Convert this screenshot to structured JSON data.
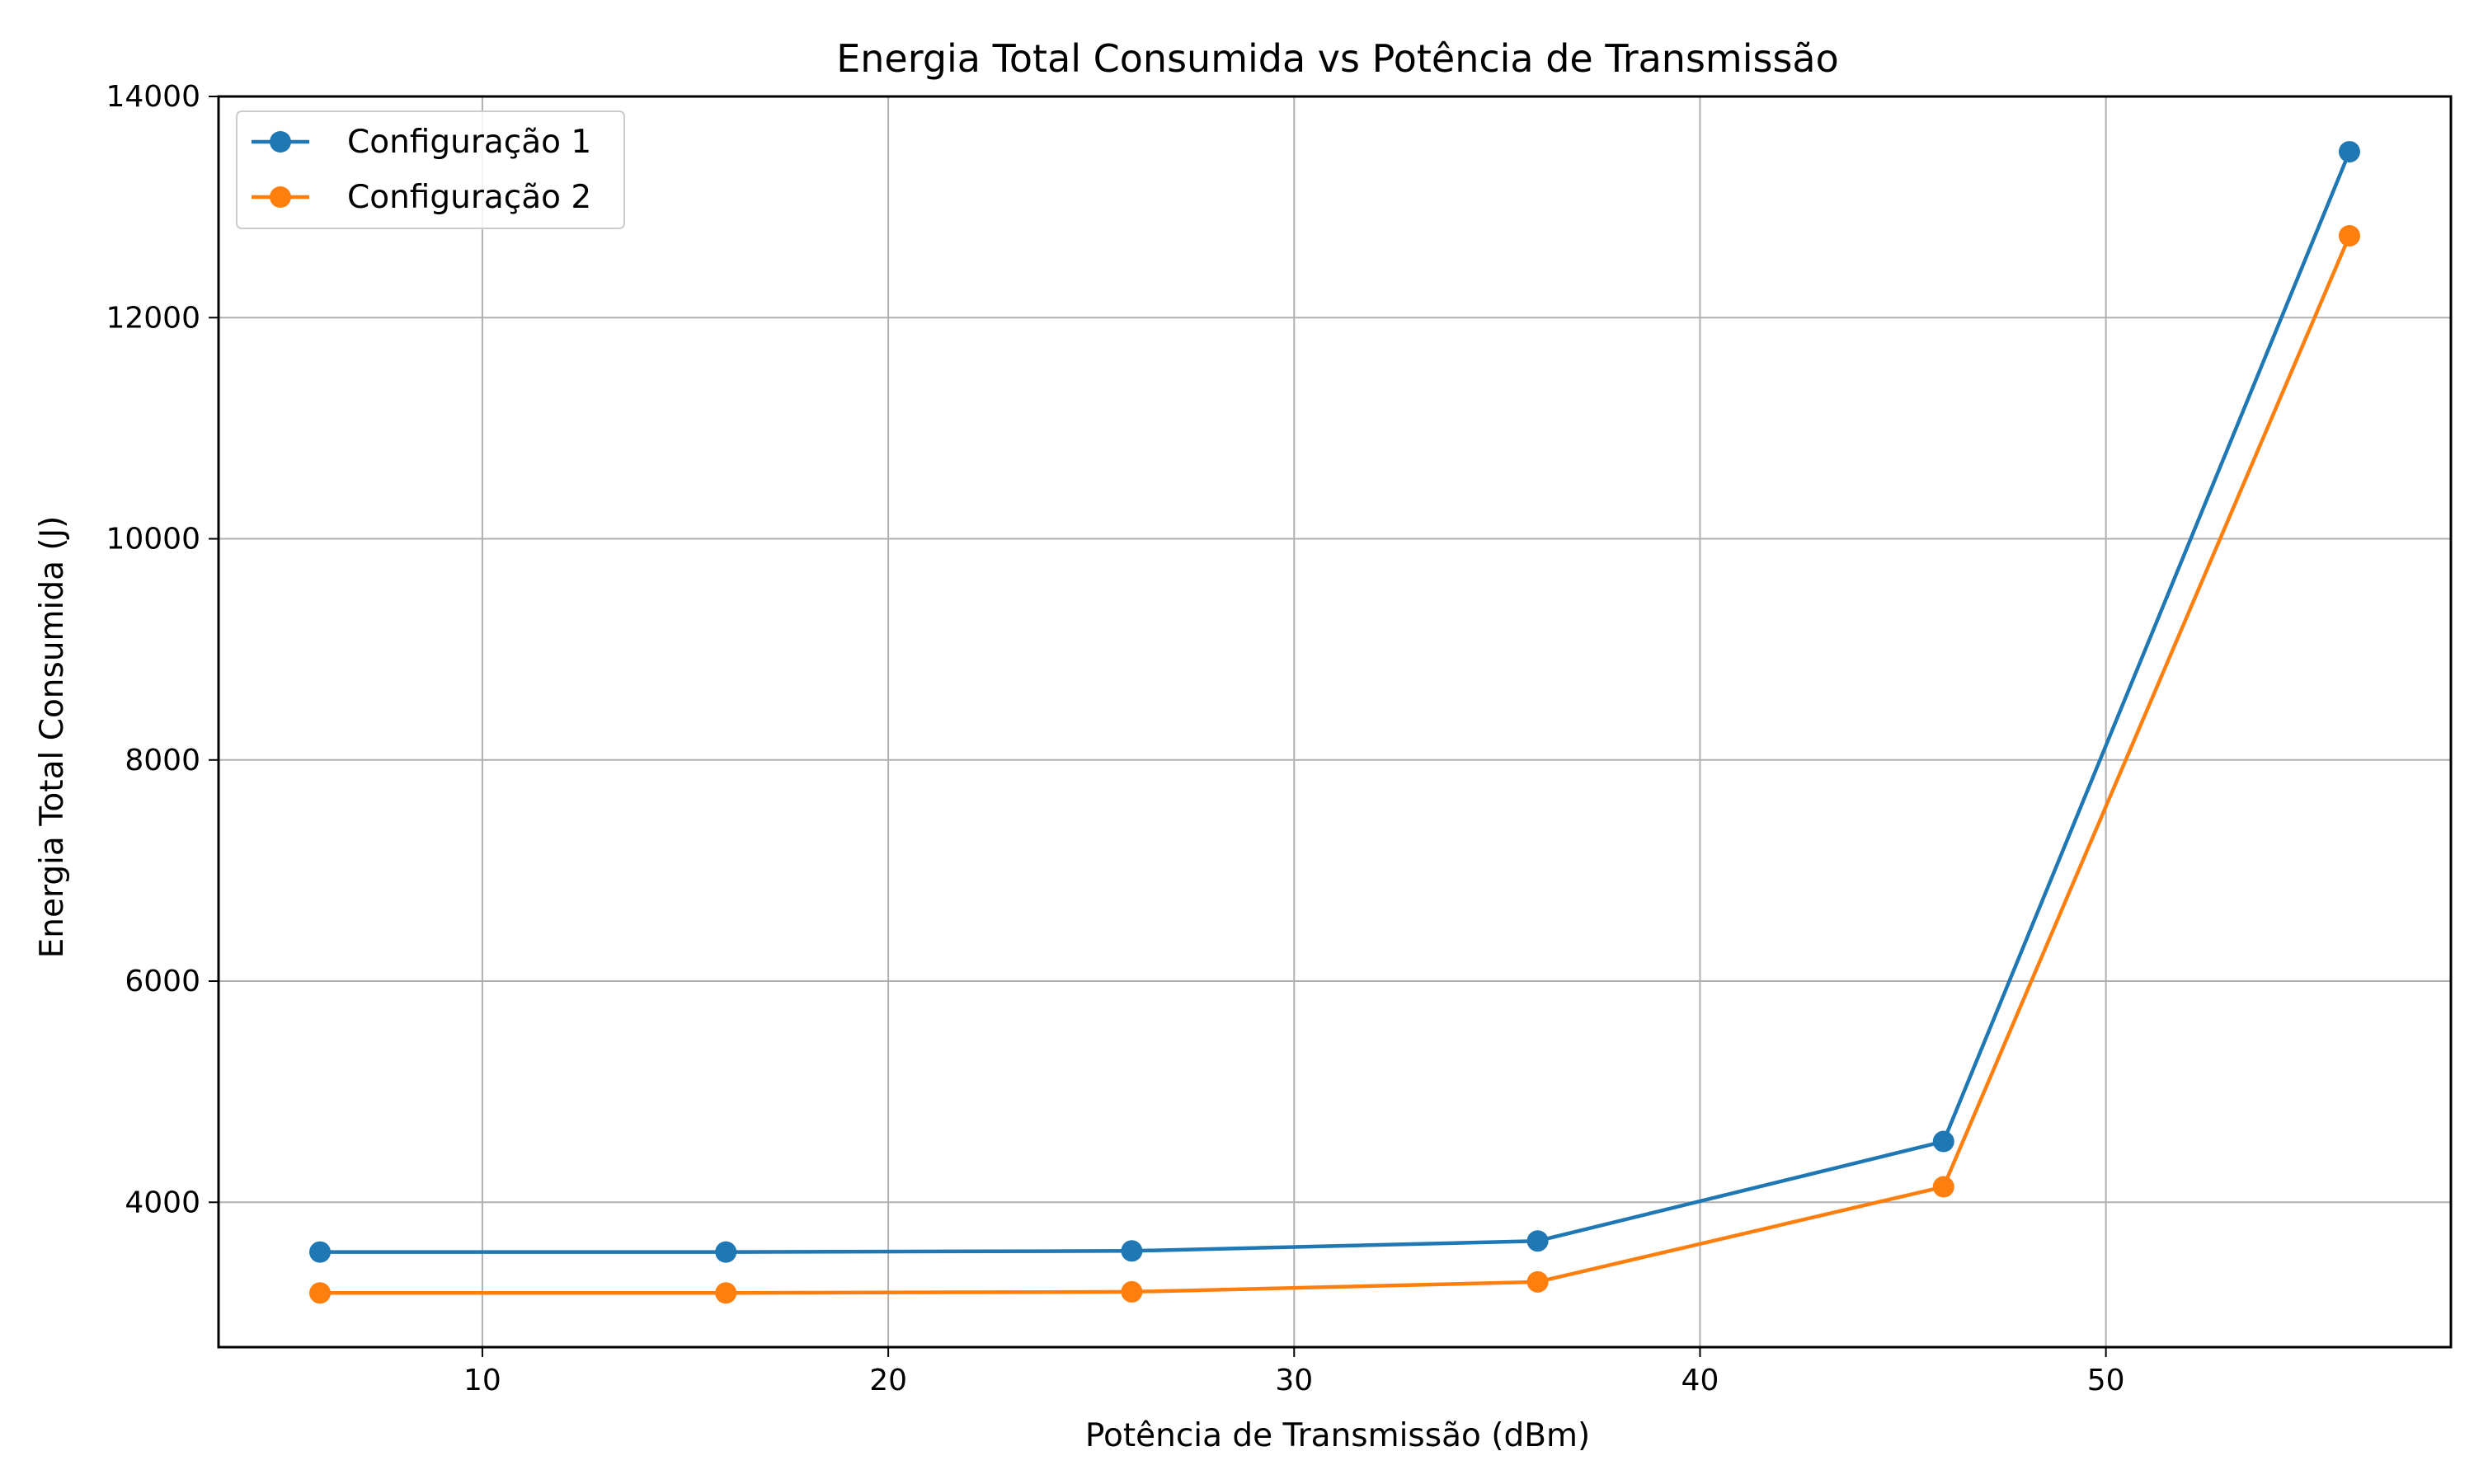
{
  "chart_data": {
    "type": "line",
    "title": "Energia Total Consumida vs Potência de Transmissão",
    "xlabel": "Potência de Transmissão (dBm)",
    "ylabel": "Energia Total Consumida (J)",
    "x": [
      6,
      16,
      26,
      36,
      46,
      56
    ],
    "xlim": [
      3.5,
      58.5
    ],
    "ylim": [
      2690,
      14000
    ],
    "xticks": [
      10,
      20,
      30,
      40,
      50
    ],
    "yticks": [
      4000,
      6000,
      8000,
      10000,
      12000,
      14000
    ],
    "grid": true,
    "legend_position": "top-left",
    "series": [
      {
        "name": "Configuração 1",
        "color": "#1f77b4",
        "marker": "circle",
        "values": [
          3550,
          3550,
          3560,
          3650,
          4550,
          13500
        ]
      },
      {
        "name": "Configuração 2",
        "color": "#ff7f0e",
        "marker": "circle",
        "values": [
          3180,
          3180,
          3190,
          3280,
          4140,
          12740
        ]
      }
    ]
  }
}
